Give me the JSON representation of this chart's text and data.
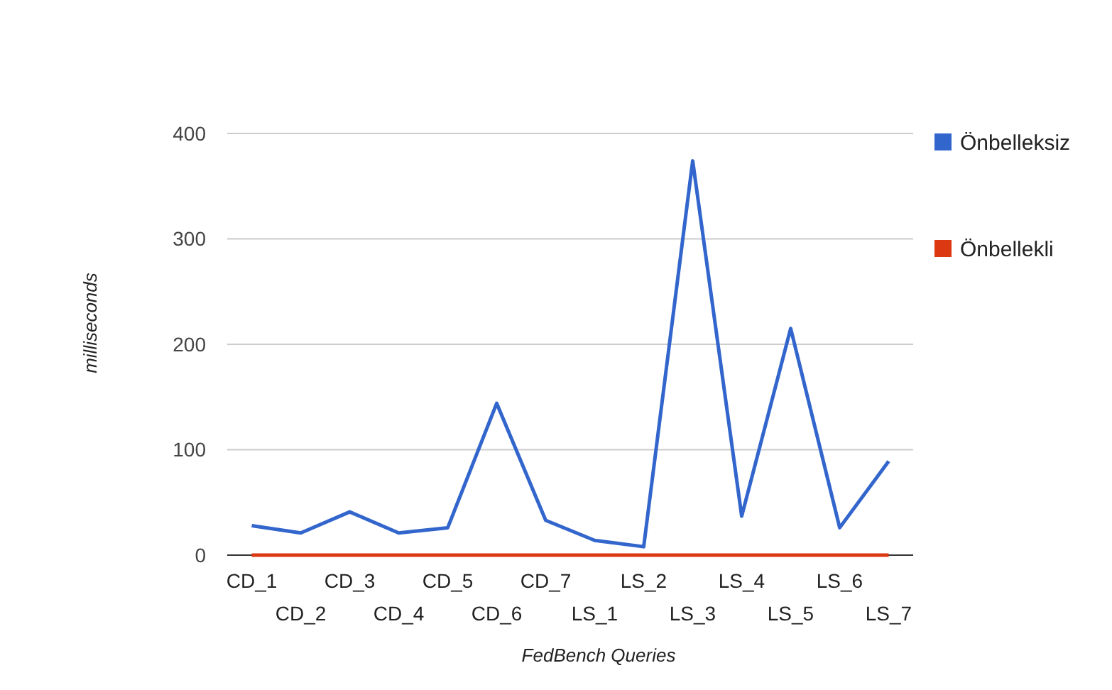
{
  "chart_data": {
    "type": "line",
    "xlabel": "FedBench Queries",
    "ylabel": "milliseconds",
    "categories": [
      "CD_1",
      "CD_2",
      "CD_3",
      "CD_4",
      "CD_5",
      "CD_6",
      "CD_7",
      "LS_1",
      "LS_2",
      "LS_3",
      "LS_4",
      "LS_5",
      "LS_6",
      "LS_7"
    ],
    "series": [
      {
        "name": "Önbelleksiz",
        "color": "#3366cc",
        "values": [
          28,
          21,
          41,
          21,
          26,
          144,
          33,
          14,
          8,
          374,
          37,
          215,
          26,
          89
        ]
      },
      {
        "name": "Önbellekli",
        "color": "#dc3912",
        "values": [
          0,
          0,
          0,
          0,
          0,
          0,
          0,
          0,
          0,
          0,
          0,
          0,
          0,
          0
        ]
      }
    ],
    "ylim": [
      0,
      400
    ],
    "yticks": [
      0,
      100,
      200,
      300,
      400
    ],
    "grid": "y",
    "legend": "right",
    "marker": "none",
    "line_style": "solid"
  }
}
